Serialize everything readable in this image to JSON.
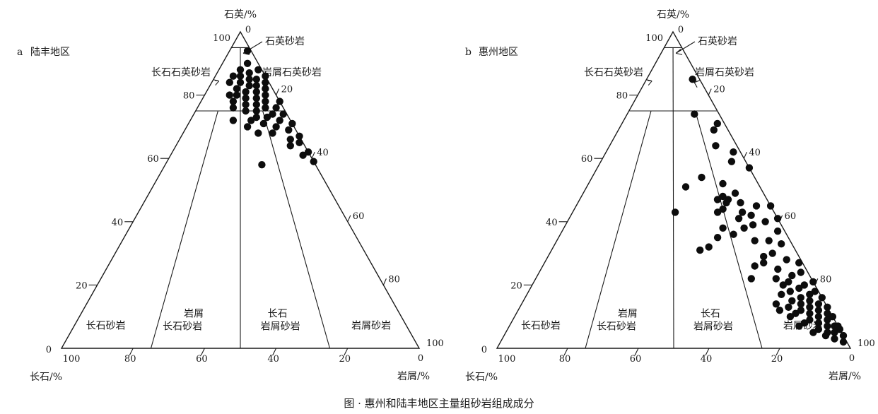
{
  "figure": {
    "caption": "图 ·  惠州和陆丰地区主量组砂岩组成成分"
  },
  "chart_data": [
    {
      "type": "scatter",
      "panel_letter": "a",
      "panel_title": "陆丰地区",
      "ternary": true,
      "apex_labels": {
        "top": "石英/%",
        "left": "长石/%",
        "right": "岩屑/%"
      },
      "axis_ticks": {
        "left": [
          "0",
          "20",
          "40",
          "60",
          "80",
          "100"
        ],
        "right": [
          "20",
          "40",
          "60",
          "80",
          "100"
        ],
        "bottom": [
          "100",
          "80",
          "60",
          "40",
          "20",
          "0"
        ],
        "apex_zero": "0"
      },
      "field_labels": {
        "quartz_sandstone": "石英砂岩",
        "feldspathic_quartz_sandstone": "长石石英砂岩",
        "lithic_quartz_sandstone": "岩屑石英砂岩",
        "arkose": "长石砂岩",
        "lithic_arkose_1": "岩屑",
        "lithic_arkose_2": "长石砂岩",
        "feldspathic_litharenite_1": "长石",
        "feldspathic_litharenite_2": "岩屑砂岩",
        "litharenite": "岩屑砂岩"
      },
      "points": [
        [
          94,
          1,
          5
        ],
        [
          90,
          3,
          7
        ],
        [
          88,
          1,
          11
        ],
        [
          88,
          6,
          6
        ],
        [
          87,
          4,
          9
        ],
        [
          86,
          0,
          14
        ],
        [
          86,
          7,
          7
        ],
        [
          85,
          3,
          12
        ],
        [
          85,
          5,
          10
        ],
        [
          84,
          1,
          15
        ],
        [
          84,
          8,
          8
        ],
        [
          83,
          4,
          13
        ],
        [
          83,
          6,
          11
        ],
        [
          82,
          2,
          16
        ],
        [
          82,
          10,
          8
        ],
        [
          81,
          5,
          14
        ],
        [
          81,
          8,
          11
        ],
        [
          80,
          3,
          17
        ],
        [
          80,
          11,
          9
        ],
        [
          79,
          6,
          15
        ],
        [
          79,
          9,
          12
        ],
        [
          78,
          0,
          22
        ],
        [
          78,
          4,
          18
        ],
        [
          78,
          13,
          9
        ],
        [
          77,
          7,
          16
        ],
        [
          77,
          10,
          13
        ],
        [
          76,
          2,
          22
        ],
        [
          76,
          5,
          19
        ],
        [
          76,
          14,
          10
        ],
        [
          75,
          8,
          17
        ],
        [
          75,
          11,
          14
        ],
        [
          74,
          1,
          25
        ],
        [
          74,
          4,
          22
        ],
        [
          73,
          9,
          18
        ],
        [
          73,
          6,
          21
        ],
        [
          72,
          3,
          25
        ],
        [
          72,
          11,
          17
        ],
        [
          71,
          0,
          29
        ],
        [
          71,
          8,
          21
        ],
        [
          70,
          5,
          25
        ],
        [
          70,
          13,
          17
        ],
        [
          69,
          2,
          29
        ],
        [
          68,
          7,
          25
        ],
        [
          67,
          0,
          33
        ],
        [
          66,
          3,
          31
        ],
        [
          65,
          1,
          34
        ],
        [
          64,
          4,
          32
        ],
        [
          62,
          0,
          38
        ],
        [
          61,
          2,
          37
        ],
        [
          59,
          0,
          41
        ],
        [
          58,
          15,
          27
        ],
        [
          84,
          11,
          5
        ],
        [
          80,
          13,
          7
        ],
        [
          86,
          9,
          5
        ],
        [
          72,
          16,
          12
        ],
        [
          68,
          11,
          21
        ]
      ]
    },
    {
      "type": "scatter",
      "panel_letter": "b",
      "panel_title": "惠州地区",
      "ternary": true,
      "apex_labels": {
        "top": "石英/%",
        "left": "长石/%",
        "right": "岩屑/%"
      },
      "axis_ticks": {
        "left": [
          "0",
          "20",
          "40",
          "60",
          "80",
          "100"
        ],
        "right": [
          "20",
          "40",
          "60",
          "80",
          "100"
        ],
        "bottom": [
          "100",
          "80",
          "60",
          "40",
          "20",
          "0"
        ],
        "apex_zero": "0"
      },
      "field_labels": {
        "quartz_sandstone": "石英砂岩",
        "feldspathic_quartz_sandstone": "长石石英砂岩",
        "lithic_quartz_sandstone": "岩屑石英砂岩",
        "arkose": "长石砂岩",
        "lithic_arkose_1": "岩屑",
        "lithic_arkose_2": "长石砂岩",
        "feldspathic_litharenite_1": "长石",
        "feldspathic_litharenite_2": "岩屑砂岩",
        "litharenite": "岩屑砂岩"
      },
      "points": [
        [
          85,
          2,
          13
        ],
        [
          74,
          7,
          19
        ],
        [
          71,
          2,
          27
        ],
        [
          69,
          4,
          27
        ],
        [
          64,
          6,
          30
        ],
        [
          62,
          2,
          36
        ],
        [
          59,
          4,
          37
        ],
        [
          57,
          0,
          43
        ],
        [
          54,
          15,
          31
        ],
        [
          52,
          10,
          38
        ],
        [
          51,
          21,
          28
        ],
        [
          49,
          8,
          43
        ],
        [
          48,
          12,
          40
        ],
        [
          47,
          14,
          39
        ],
        [
          47,
          11,
          42
        ],
        [
          46,
          8,
          46
        ],
        [
          46,
          12,
          42
        ],
        [
          45,
          0,
          55
        ],
        [
          45,
          4,
          51
        ],
        [
          44,
          14,
          42
        ],
        [
          43,
          9,
          48
        ],
        [
          43,
          16,
          41
        ],
        [
          43,
          28,
          29
        ],
        [
          42,
          7,
          51
        ],
        [
          41,
          11,
          48
        ],
        [
          41,
          0,
          59
        ],
        [
          40,
          4,
          56
        ],
        [
          39,
          8,
          53
        ],
        [
          38,
          11,
          51
        ],
        [
          37,
          2,
          61
        ],
        [
          36,
          15,
          49
        ],
        [
          35,
          20,
          45
        ],
        [
          34,
          6,
          60
        ],
        [
          34,
          10,
          56
        ],
        [
          33,
          3,
          64
        ],
        [
          32,
          24,
          44
        ],
        [
          31,
          27,
          42
        ],
        [
          30,
          7,
          63
        ],
        [
          29,
          10,
          61
        ],
        [
          28,
          4,
          68
        ],
        [
          27,
          11,
          62
        ],
        [
          27,
          1,
          72
        ],
        [
          25,
          8,
          67
        ],
        [
          24,
          2,
          74
        ],
        [
          23,
          5,
          72
        ],
        [
          22,
          17,
          61
        ],
        [
          21,
          7,
          72
        ],
        [
          21,
          0,
          79
        ],
        [
          20,
          3,
          77
        ],
        [
          20,
          9,
          71
        ],
        [
          19,
          5,
          76
        ],
        [
          18,
          1,
          81
        ],
        [
          18,
          8,
          74
        ],
        [
          17,
          3,
          80
        ],
        [
          17,
          11,
          72
        ],
        [
          16,
          6,
          78
        ],
        [
          16,
          0,
          84
        ],
        [
          15,
          4,
          81
        ],
        [
          15,
          9,
          76
        ],
        [
          14,
          2,
          84
        ],
        [
          14,
          7,
          79
        ],
        [
          13,
          11,
          76
        ],
        [
          13,
          0,
          87
        ],
        [
          13,
          5,
          82
        ],
        [
          12,
          3,
          85
        ],
        [
          12,
          8,
          80
        ],
        [
          11,
          1,
          88
        ],
        [
          11,
          6,
          83
        ],
        [
          11,
          10,
          79
        ],
        [
          10,
          4,
          86
        ],
        [
          10,
          12,
          78
        ],
        [
          9,
          2,
          89
        ],
        [
          9,
          7,
          84
        ],
        [
          8,
          5,
          87
        ],
        [
          8,
          9,
          83
        ],
        [
          7,
          1,
          92
        ],
        [
          7,
          3,
          90
        ],
        [
          7,
          11,
          82
        ],
        [
          6,
          6,
          88
        ],
        [
          6,
          0,
          94
        ],
        [
          5,
          4,
          91
        ],
        [
          5,
          8,
          87
        ],
        [
          5,
          2,
          93
        ],
        [
          4,
          5,
          91
        ],
        [
          4,
          0,
          96
        ],
        [
          3,
          3,
          94
        ],
        [
          2,
          1,
          97
        ],
        [
          22,
          10,
          68
        ],
        [
          26,
          14,
          60
        ],
        [
          38,
          17,
          45
        ],
        [
          12,
          14,
          74
        ],
        [
          7,
          0,
          93
        ],
        [
          10,
          0,
          90
        ],
        [
          14,
          14,
          72
        ]
      ]
    }
  ]
}
